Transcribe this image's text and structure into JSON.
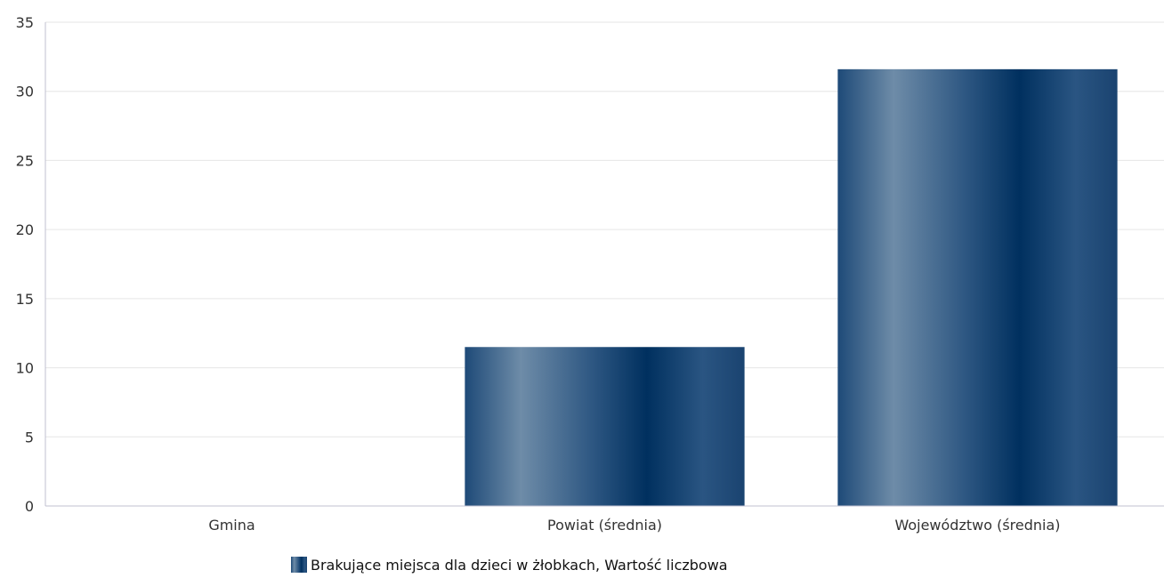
{
  "chart_data": {
    "type": "bar",
    "categories": [
      "Gmina",
      "Powiat (średnia)",
      "Województwo (średnia)"
    ],
    "series": [
      {
        "name": "Brakujące miejsca dla dzieci w żłobkach, Wartość liczbowa",
        "values": [
          0,
          11.5,
          31.6
        ]
      }
    ],
    "ylim": [
      0,
      35
    ],
    "yticks": [
      "0",
      "5",
      "10",
      "15",
      "20",
      "25",
      "30",
      "35"
    ],
    "grid": true,
    "legend_position": "bottom",
    "colors": {
      "bar_dark": "#00305f",
      "bar_light": "#6e8ca8",
      "grid": "#e6e6e6",
      "axis": "#c0c0d0"
    }
  }
}
